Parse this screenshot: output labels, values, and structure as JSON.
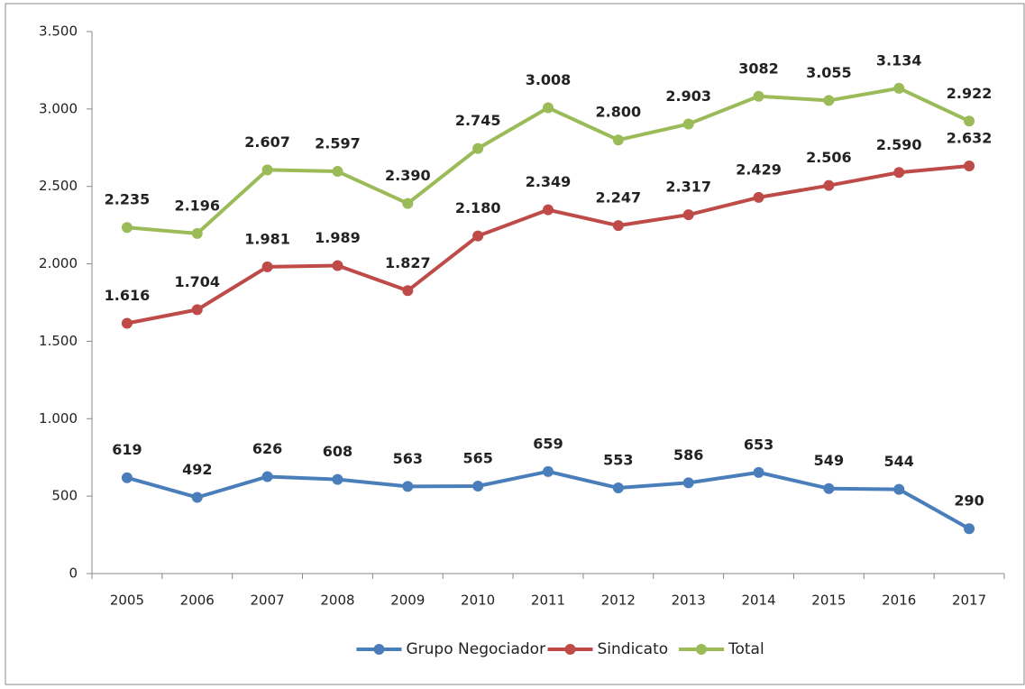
{
  "chart_data": {
    "type": "line",
    "categories": [
      "2005",
      "2006",
      "2007",
      "2008",
      "2009",
      "2010",
      "2011",
      "2012",
      "2013",
      "2014",
      "2015",
      "2016",
      "2017"
    ],
    "series": [
      {
        "name": "Grupo Negociador",
        "color": "#4a7ebb",
        "values": [
          619,
          492,
          626,
          608,
          563,
          565,
          659,
          553,
          586,
          653,
          549,
          544,
          290
        ]
      },
      {
        "name": "Sindicato",
        "color": "#be4b48",
        "values": [
          1616,
          1704,
          1981,
          1989,
          1827,
          2180,
          2349,
          2247,
          2317,
          2429,
          2506,
          2590,
          2632
        ],
        "value_labels": [
          "1.616",
          "1.704",
          "1.981",
          "1.989",
          "1.827",
          "2.180",
          "2.349",
          "2.247",
          "2.317",
          "2.429",
          "2.506",
          "2.590",
          "2.632"
        ]
      },
      {
        "name": "Total",
        "color": "#9bbb59",
        "values": [
          2235,
          2196,
          2607,
          2597,
          2390,
          2745,
          3008,
          2800,
          2903,
          3082,
          3055,
          3134,
          2922
        ],
        "value_labels": [
          "2.235",
          "2.196",
          "2.607",
          "2.597",
          "2.390",
          "2.745",
          "3.008",
          "2.800",
          "2.903",
          "3082",
          "3.055",
          "3.134",
          "2.922"
        ]
      }
    ],
    "ylim": [
      0,
      3500
    ],
    "yticks": [
      0,
      500,
      {
        "value": 1000,
        "label": "1.000"
      },
      {
        "value": 1500,
        "label": "1.500"
      },
      {
        "value": 2000,
        "label": "2.000"
      },
      {
        "value": 2500,
        "label": "2.500"
      },
      {
        "value": 3000,
        "label": "3.000"
      },
      {
        "value": 3500,
        "label": "3.500"
      }
    ],
    "grid": false,
    "legend": "bottom"
  }
}
